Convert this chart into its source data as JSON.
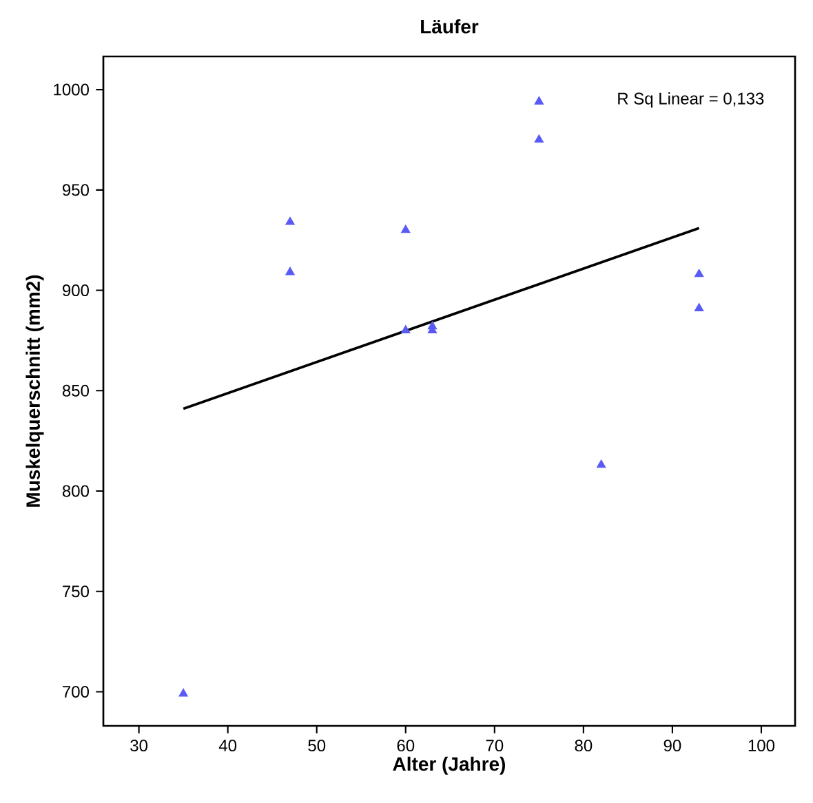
{
  "chart_data": {
    "type": "scatter",
    "title": "Läufer",
    "xlabel": "Alter (Jahre)",
    "ylabel": "Muskelquerschnitt (mm2)",
    "xlim": [
      26,
      103.8
    ],
    "ylim": [
      683,
      1016.5
    ],
    "xticks": [
      30,
      40,
      50,
      60,
      70,
      80,
      90,
      100
    ],
    "yticks": [
      700,
      750,
      800,
      850,
      900,
      950,
      1000
    ],
    "grid": false,
    "annotations": [
      "R Sq Linear = 0,133"
    ],
    "series": [
      {
        "marker": "triangle",
        "color": "#5a5af5",
        "x": [
          35,
          47,
          47,
          60,
          60,
          63,
          63,
          75,
          75,
          82,
          93,
          93
        ],
        "values": [
          699,
          934,
          909,
          930,
          880,
          882,
          880,
          994,
          975,
          813,
          908,
          891
        ]
      },
      {
        "type": "line",
        "marker": "none",
        "line_style": "solid",
        "color": "#000000",
        "x": [
          35,
          93
        ],
        "values": [
          841,
          931
        ]
      }
    ]
  }
}
